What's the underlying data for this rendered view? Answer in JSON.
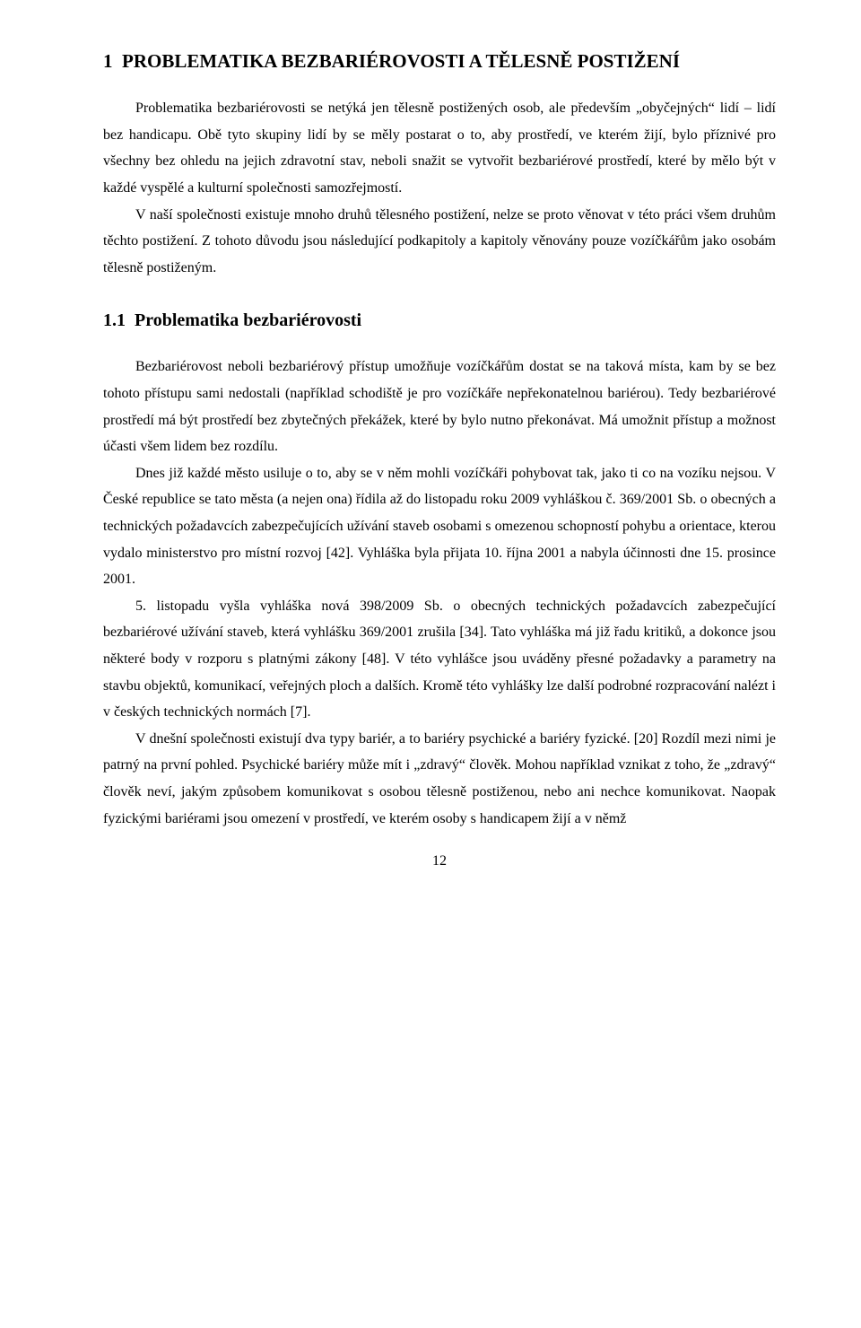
{
  "chapter": {
    "number": "1",
    "title": "PROBLEMATIKA BEZBARIÉROVOSTI A TĚLESNĚ POSTIŽENÍ"
  },
  "intro": {
    "p1": "Problematika bezbariérovosti se netýká jen tělesně postižených osob, ale především „obyčejných“ lidí – lidí bez handicapu. Obě tyto skupiny lidí by se měly postarat o to, aby prostředí, ve kterém žijí, bylo příznivé pro všechny bez ohledu na jejich zdravotní stav, neboli snažit se vytvořit bezbariérové prostředí, které by mělo být v každé vyspělé a kulturní společnosti samozřejmostí.",
    "p2": "V naší společnosti existuje mnoho druhů tělesného postižení, nelze se proto věnovat v této práci všem druhům těchto postižení. Z tohoto důvodu jsou následující podkapitoly a kapitoly věnovány pouze vozíčkářům jako osobám tělesně postiženým."
  },
  "section": {
    "number": "1.1",
    "title": "Problematika bezbariérovosti",
    "p1": "Bezbariérovost neboli bezbariérový přístup umožňuje vozíčkářům dostat se na taková místa, kam by se bez tohoto přístupu sami nedostali (například schodiště je pro vozíčkáře nepřekonatelnou bariérou). Tedy bezbariérové prostředí má být prostředí bez zbytečných překážek, které by bylo nutno překonávat. Má umožnit přístup a možnost účasti všem lidem bez rozdílu.",
    "p2": "Dnes již každé město usiluje o to, aby se v něm mohli vozíčkáři pohybovat tak, jako ti co na vozíku nejsou. V České republice se tato města (a nejen ona) řídila až do listopadu roku 2009 vyhláškou č. 369/2001 Sb. o obecných a technických požadavcích zabezpečujících užívání staveb osobami s omezenou schopností pohybu a orientace, kterou vydalo ministerstvo pro místní rozvoj [42]. Vyhláška byla přijata 10. října 2001 a nabyla účinnosti dne 15. prosince 2001.",
    "p3": "5. listopadu vyšla vyhláška nová 398/2009 Sb. o obecných technických požadavcích zabezpečující bezbariérové užívání staveb, která vyhlášku 369/2001 zrušila [34]. Tato vyhláška má již řadu kritiků, a dokonce jsou některé body v rozporu s platnými zákony [48]. V této vyhlášce jsou uváděny přesné požadavky a parametry na stavbu objektů, komunikací, veřejných ploch a dalších.  Kromě této vyhlášky lze další podrobné rozpracování nalézt i v českých technických normách [7].",
    "p4": "V dnešní společnosti existují dva typy bariér, a to bariéry psychické  a bariéry fyzické. [20] Rozdíl mezi nimi je patrný na první pohled. Psychické bariéry může mít i „zdravý“ člověk. Mohou například vznikat z toho, že „zdravý“ člověk neví, jakým způsobem komunikovat s osobou tělesně postiženou, nebo ani nechce komunikovat. Naopak fyzickými bariérami jsou omezení v prostředí, ve kterém osoby s handicapem žijí a v němž"
  },
  "pageNumber": "12",
  "style": {
    "body_font_size": 16,
    "title_font_size": 21,
    "section_font_size": 20,
    "text_color": "#000000",
    "background_color": "#ffffff",
    "line_height": 1.85,
    "text_indent": 36
  }
}
